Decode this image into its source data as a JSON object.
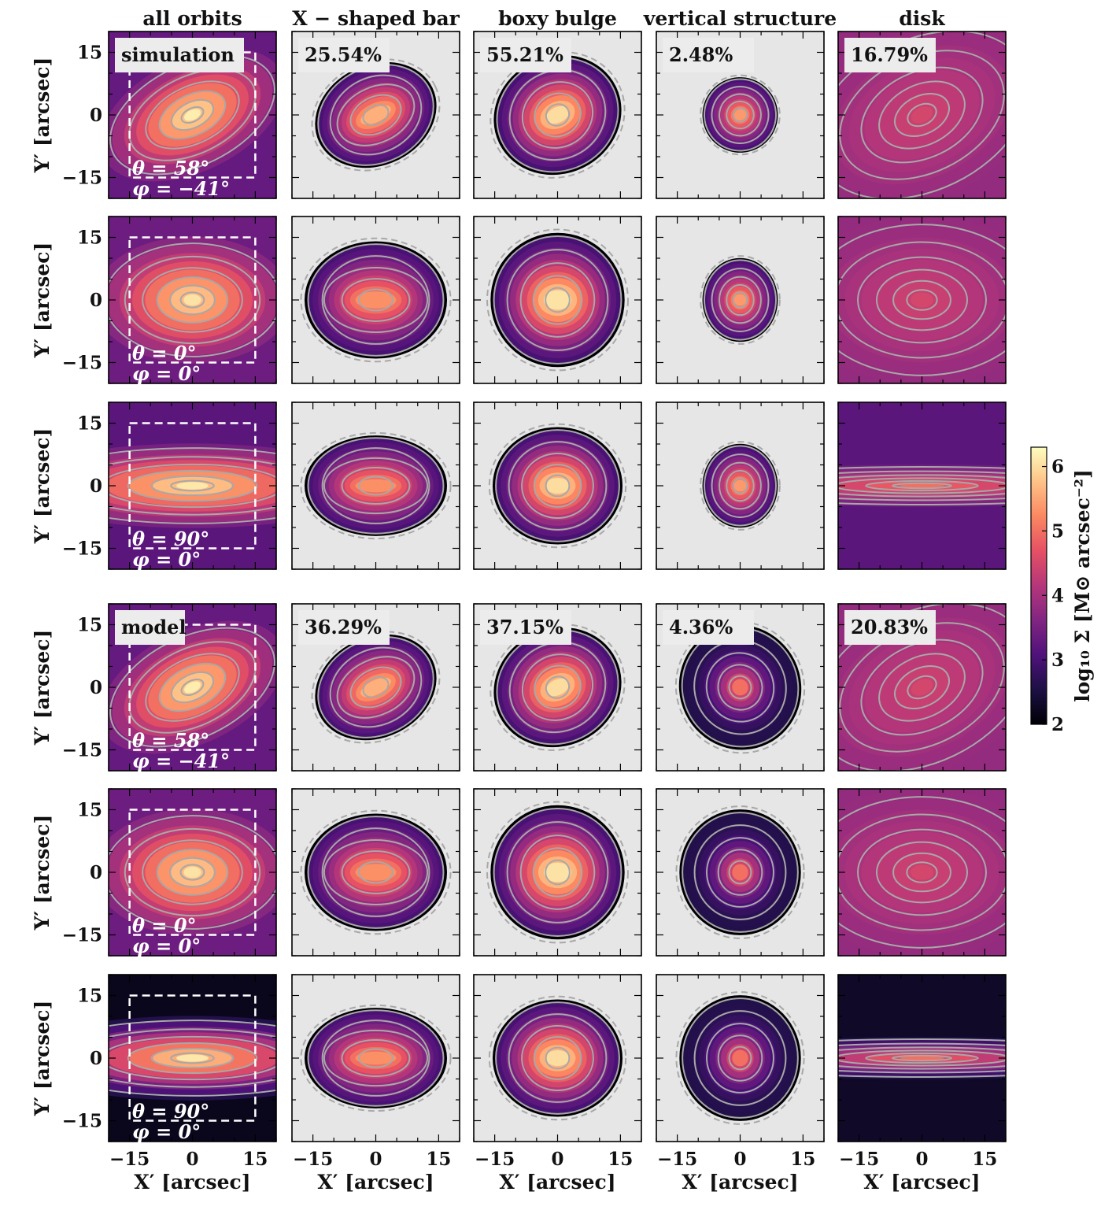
{
  "column_titles": [
    "all orbits",
    "X − shaped bar",
    "boxy bulge",
    "vertical structure",
    "disk"
  ],
  "row_blocks": [
    "simulation",
    "model"
  ],
  "axis_labels": {
    "x": "X′ [arcsec]",
    "y": "Y′ [arcsec]"
  },
  "colorbar": {
    "label": "log₁₀ Σ [M⊙ arcsec⁻²]",
    "ticks": [
      "2",
      "3",
      "4",
      "5",
      "6"
    ],
    "range": [
      2,
      6.3
    ],
    "colormap": "magma",
    "colors": [
      "#000004",
      "#1c1044",
      "#4f127b",
      "#812581",
      "#b5367a",
      "#e55064",
      "#fb8761",
      "#fec287",
      "#fcfdbf"
    ]
  },
  "colors": {
    "background_masked": "#e6e6e6",
    "contour": "#a8a8a8",
    "window_dashes": "#ffffff"
  },
  "chart_data": {
    "type": "heatmap",
    "grid": "5 columns x 6 rows of surface-density maps",
    "xlim": [
      -20,
      20
    ],
    "ylim": [
      -20,
      20
    ],
    "xticks": [
      "−15",
      "0",
      "15"
    ],
    "yticks": [
      "15",
      "0",
      "−15"
    ],
    "rows": [
      {
        "block": "simulation",
        "label": "simulation",
        "theta": "θ = 58°",
        "phi": "φ = −41°",
        "fractions": [
          "25.54%",
          "55.21%",
          "2.48%",
          "16.79%"
        ]
      },
      {
        "block": "simulation",
        "label": "",
        "theta": "θ = 0°",
        "phi": "φ = 0°",
        "fractions": [
          "",
          "",
          "",
          ""
        ]
      },
      {
        "block": "simulation",
        "label": "",
        "theta": "θ = 90°",
        "phi": "φ = 0°",
        "fractions": [
          "",
          "",
          "",
          ""
        ]
      },
      {
        "block": "model",
        "label": "model",
        "theta": "θ = 58°",
        "phi": "φ = −41°",
        "fractions": [
          "36.29%",
          "37.15%",
          "4.36%",
          "20.83%"
        ]
      },
      {
        "block": "model",
        "label": "",
        "theta": "θ = 0°",
        "phi": "φ = 0°",
        "fractions": [
          "",
          "",
          "",
          ""
        ]
      },
      {
        "block": "model",
        "label": "",
        "theta": "θ = 90°",
        "phi": "φ = 0°",
        "fractions": [
          "",
          "",
          "",
          ""
        ]
      }
    ],
    "window_arcsec": {
      "x": [
        -15,
        15
      ],
      "y": [
        -15,
        15
      ]
    }
  }
}
